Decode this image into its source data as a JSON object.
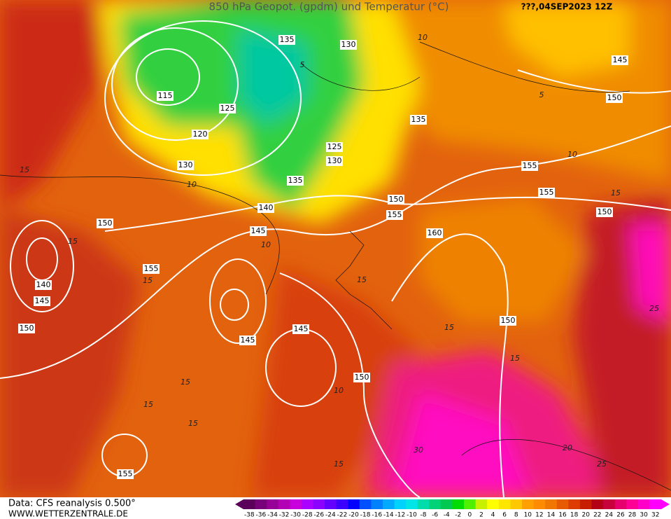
{
  "header": {
    "title": "850 hPa Geopot. (gpdm) und Temperatur (°C)",
    "date": "???,04SEP2023 12Z"
  },
  "footer": {
    "source": "Data: CFS reanalysis 0.500°",
    "site": "WWW.WETTERZENTRALE.DE"
  },
  "geopotential_labels": [
    135,
    130,
    145,
    115,
    125,
    150,
    135,
    120,
    125,
    130,
    130,
    155,
    135,
    155,
    150,
    140,
    155,
    150,
    145,
    160,
    150,
    155,
    140,
    145,
    150,
    150,
    145,
    145,
    150,
    155
  ],
  "temperature_labels": [
    5,
    10,
    5,
    10,
    10,
    15,
    15,
    10,
    15,
    15,
    15,
    25,
    15,
    15,
    15,
    15,
    15,
    20,
    25,
    30,
    15,
    10
  ],
  "legend": {
    "labels": [
      -38,
      -36,
      -34,
      -32,
      -30,
      -28,
      -26,
      -24,
      -22,
      -20,
      -18,
      -16,
      -14,
      -12,
      -10,
      -8,
      -6,
      -4,
      -2,
      0,
      2,
      4,
      6,
      8,
      10,
      12,
      14,
      16,
      18,
      20,
      22,
      24,
      26,
      28,
      30,
      32
    ],
    "colors": [
      "#5a005a",
      "#780078",
      "#960096",
      "#b400b4",
      "#c800dc",
      "#aa00ff",
      "#8c00ff",
      "#6400ff",
      "#3c00ff",
      "#0000ff",
      "#0050ff",
      "#0082ff",
      "#00aaff",
      "#00d2ff",
      "#00e6e6",
      "#00dcaa",
      "#00d278",
      "#00c850",
      "#00dc00",
      "#50f000",
      "#c8f000",
      "#ffff00",
      "#ffe600",
      "#ffc800",
      "#ffa000",
      "#ff8c00",
      "#f07800",
      "#e65a00",
      "#dc3c00",
      "#c81e00",
      "#b40014",
      "#c8003c",
      "#e6006e",
      "#ff0096",
      "#ff00c8",
      "#ff00ff"
    ]
  }
}
